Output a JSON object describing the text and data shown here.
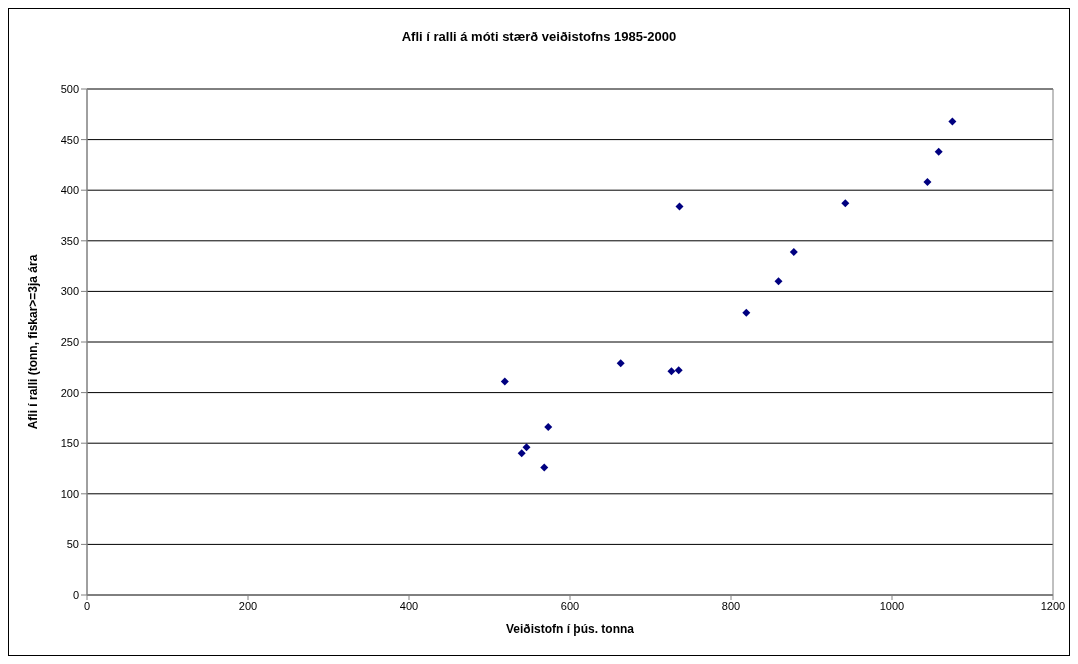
{
  "chart_data": {
    "type": "scatter",
    "title": "Afli í ralli á móti stærð veiðistofns 1985-2000",
    "xlabel": "Veiðistofn í þús. tonna",
    "ylabel": "Afli í ralli (tonn, fiskar>=3ja ára",
    "x": [
      519,
      540,
      546,
      568,
      573,
      663,
      726,
      735,
      736,
      819,
      859,
      878,
      942,
      1044,
      1058,
      1075
    ],
    "values": [
      211,
      140,
      146,
      126,
      166,
      229,
      221,
      222,
      384,
      279,
      310,
      339,
      387,
      408,
      438,
      468
    ],
    "color": "#000080",
    "marker": "diamond",
    "grid": "y",
    "xlim": [
      0,
      1200
    ],
    "xticks": [
      0,
      200,
      400,
      600,
      800,
      1000,
      1200
    ],
    "ylim": [
      0,
      500
    ],
    "yticks": [
      0,
      50,
      100,
      150,
      200,
      250,
      300,
      350,
      400,
      450,
      500
    ]
  }
}
